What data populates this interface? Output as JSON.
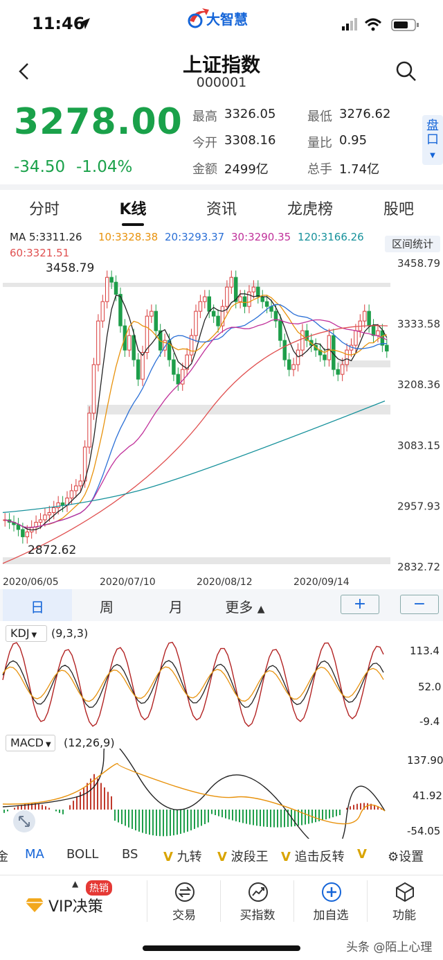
{
  "status": {
    "time": "11:46"
  },
  "brand": {
    "name": "大智慧"
  },
  "header": {
    "title": "上证指数",
    "code": "000001"
  },
  "quote": {
    "price": "3278.00",
    "change": "-34.50",
    "change_pct": "-1.04%",
    "stats": [
      {
        "label": "最高",
        "value": "3326.05"
      },
      {
        "label": "最低",
        "value": "3276.62"
      },
      {
        "label": "今开",
        "value": "3308.16"
      },
      {
        "label": "量比",
        "value": "0.95"
      },
      {
        "label": "金额",
        "value": "2499亿"
      },
      {
        "label": "总手",
        "value": "1.74亿"
      }
    ],
    "pankou_label": "盘口"
  },
  "tabs": [
    "分时",
    "K线",
    "资讯",
    "龙虎榜",
    "股吧"
  ],
  "kline": {
    "ma_legend": [
      {
        "text": "MA 5:3311.26",
        "color": "#222222"
      },
      {
        "text": "10:3328.38",
        "color": "#e8920c"
      },
      {
        "text": "20:3293.37",
        "color": "#2a6fd6"
      },
      {
        "text": "30:3290.35",
        "color": "#c0309a"
      },
      {
        "text": "120:3166.26",
        "color": "#16919b"
      },
      {
        "text": "60:3321.51",
        "color": "#e05050"
      }
    ],
    "range_button": "区间统计",
    "y_ticks": [
      "3458.79",
      "3333.58",
      "3208.36",
      "3083.15",
      "2957.93",
      "2832.72"
    ],
    "high_label": "3458.79",
    "low_label": "2872.62",
    "x_ticks": [
      "2020/06/05",
      "2020/07/10",
      "2020/08/12",
      "2020/09/14"
    ]
  },
  "periods": [
    "日",
    "周",
    "月",
    "更多"
  ],
  "zoom": {
    "plus": "+",
    "minus": "−"
  },
  "kdj": {
    "name": "KDJ",
    "params": "(9,3,3)",
    "ticks": [
      "113.4",
      "52.0",
      "-9.4"
    ]
  },
  "macd": {
    "name": "MACD",
    "params": "(12,26,9)",
    "ticks": [
      "137.90",
      "41.92",
      "-54.05"
    ]
  },
  "indicators": [
    "金",
    "MA",
    "BOLL",
    "BS",
    "九转",
    "波段王",
    "追击反转",
    "设置"
  ],
  "bottom_nav": {
    "vip": "VIP决策",
    "hot_badge": "热销",
    "items": [
      "交易",
      "买指数",
      "加自选",
      "功能"
    ]
  },
  "watermark": "头条 @陌上心理"
}
